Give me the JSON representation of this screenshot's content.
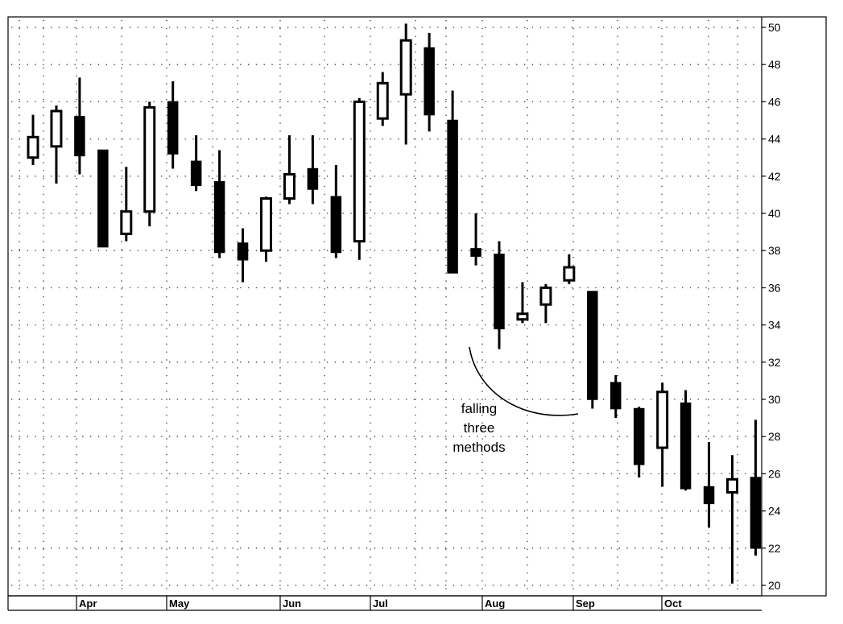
{
  "chart_data": {
    "type": "candlestick",
    "title": "",
    "xlabel": "",
    "ylabel": "",
    "ylim": [
      19.5,
      50.8
    ],
    "yticks": [
      20,
      22,
      24,
      26,
      28,
      30,
      32,
      34,
      36,
      38,
      40,
      42,
      44,
      46,
      48,
      50
    ],
    "grid": true,
    "x_axis_months": [
      "Apr",
      "May",
      "Jun",
      "Jul",
      "Aug",
      "Sep",
      "Oct"
    ],
    "candles": [
      {
        "open": 43.0,
        "high": 45.3,
        "low": 42.6,
        "close": 44.1
      },
      {
        "open": 43.6,
        "high": 45.8,
        "low": 41.6,
        "close": 45.5
      },
      {
        "open": 45.2,
        "high": 47.3,
        "low": 42.1,
        "close": 43.1
      },
      {
        "open": 43.4,
        "high": 43.4,
        "low": 38.2,
        "close": 38.2
      },
      {
        "open": 38.9,
        "high": 42.5,
        "low": 38.5,
        "close": 40.1
      },
      {
        "open": 40.1,
        "high": 46.0,
        "low": 39.3,
        "close": 45.7
      },
      {
        "open": 46.0,
        "high": 47.1,
        "low": 42.4,
        "close": 43.2
      },
      {
        "open": 42.8,
        "high": 44.2,
        "low": 41.2,
        "close": 41.5
      },
      {
        "open": 41.7,
        "high": 43.4,
        "low": 37.6,
        "close": 37.9
      },
      {
        "open": 38.4,
        "high": 39.2,
        "low": 36.3,
        "close": 37.5
      },
      {
        "open": 38.0,
        "high": 40.9,
        "low": 37.4,
        "close": 40.8
      },
      {
        "open": 40.8,
        "high": 44.2,
        "low": 40.5,
        "close": 42.1
      },
      {
        "open": 42.4,
        "high": 44.2,
        "low": 40.5,
        "close": 41.3
      },
      {
        "open": 40.9,
        "high": 42.6,
        "low": 37.6,
        "close": 37.9
      },
      {
        "open": 38.5,
        "high": 46.2,
        "low": 37.5,
        "close": 46.0
      },
      {
        "open": 45.1,
        "high": 47.6,
        "low": 44.7,
        "close": 47.0
      },
      {
        "open": 46.4,
        "high": 50.2,
        "low": 43.7,
        "close": 49.3
      },
      {
        "open": 48.9,
        "high": 49.7,
        "low": 44.4,
        "close": 45.3
      },
      {
        "open": 45.0,
        "high": 46.6,
        "low": 36.8,
        "close": 36.8
      },
      {
        "open": 38.1,
        "high": 40.0,
        "low": 37.2,
        "close": 37.7
      },
      {
        "open": 37.8,
        "high": 38.5,
        "low": 32.7,
        "close": 33.8
      },
      {
        "open": 34.3,
        "high": 36.3,
        "low": 34.1,
        "close": 34.6
      },
      {
        "open": 35.1,
        "high": 36.2,
        "low": 34.1,
        "close": 36.0
      },
      {
        "open": 36.4,
        "high": 37.8,
        "low": 36.2,
        "close": 37.1
      },
      {
        "open": 35.8,
        "high": 35.8,
        "low": 29.5,
        "close": 30.0
      },
      {
        "open": 30.9,
        "high": 31.3,
        "low": 29.0,
        "close": 29.5
      },
      {
        "open": 29.5,
        "high": 29.6,
        "low": 25.8,
        "close": 26.5
      },
      {
        "open": 27.4,
        "high": 30.9,
        "low": 25.3,
        "close": 30.4
      },
      {
        "open": 29.8,
        "high": 30.5,
        "low": 25.1,
        "close": 25.2
      },
      {
        "open": 25.3,
        "high": 27.7,
        "low": 23.1,
        "close": 24.4
      },
      {
        "open": 25.0,
        "high": 27.0,
        "low": 20.1,
        "close": 25.7
      },
      {
        "open": 25.8,
        "high": 28.9,
        "low": 21.6,
        "close": 22.0
      }
    ],
    "annotations": [
      {
        "lines": [
          "falling",
          "three",
          "methods"
        ]
      }
    ]
  }
}
